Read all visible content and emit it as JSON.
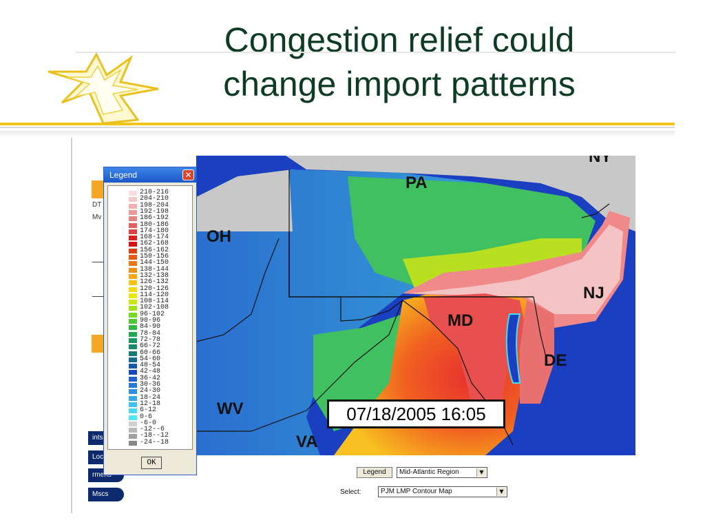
{
  "slide": {
    "title_line1": "Congestion relief could",
    "title_line2": "change import patterns",
    "accent_color": "#f0c419",
    "title_color": "#0d3b24"
  },
  "app": {
    "side_texts": [
      "DT",
      "Mv"
    ],
    "side_pills": [
      "ints",
      "Loc",
      "rmens",
      "Mscs"
    ]
  },
  "legend": {
    "title": "Legend",
    "close_icon": "close-icon",
    "ok_label": "OK",
    "entries": [
      {
        "label": "210-216",
        "color": "#f6dede"
      },
      {
        "label": "204-210",
        "color": "#f2c8c8"
      },
      {
        "label": "198-204",
        "color": "#f0b0b0"
      },
      {
        "label": "192-198",
        "color": "#ec9898"
      },
      {
        "label": "186-192",
        "color": "#e88080"
      },
      {
        "label": "180-186",
        "color": "#e46060"
      },
      {
        "label": "174-180",
        "color": "#e04040"
      },
      {
        "label": "168-174",
        "color": "#dc2020"
      },
      {
        "label": "162-168",
        "color": "#d81010"
      },
      {
        "label": "156-162",
        "color": "#e03c10"
      },
      {
        "label": "150-156",
        "color": "#e85a10"
      },
      {
        "label": "144-150",
        "color": "#f07810"
      },
      {
        "label": "138-144",
        "color": "#f49010"
      },
      {
        "label": "132-138",
        "color": "#f8a810"
      },
      {
        "label": "126-132",
        "color": "#f8c010"
      },
      {
        "label": "120-126",
        "color": "#f4d810"
      },
      {
        "label": "114-120",
        "color": "#e8e810"
      },
      {
        "label": "108-114",
        "color": "#c8e810"
      },
      {
        "label": "102-108",
        "color": "#a0e010"
      },
      {
        "label": "96-102",
        "color": "#78d820"
      },
      {
        "label": "90-96",
        "color": "#50c830"
      },
      {
        "label": "84-90",
        "color": "#30b840"
      },
      {
        "label": "78-84",
        "color": "#20a850"
      },
      {
        "label": "72-78",
        "color": "#189860"
      },
      {
        "label": "66-72",
        "color": "#188868"
      },
      {
        "label": "60-66",
        "color": "#187878"
      },
      {
        "label": "54-60",
        "color": "#186890"
      },
      {
        "label": "48-54",
        "color": "#1858a8"
      },
      {
        "label": "42-48",
        "color": "#1848c0"
      },
      {
        "label": "36-42",
        "color": "#2060d0"
      },
      {
        "label": "30-36",
        "color": "#2878d8"
      },
      {
        "label": "24-30",
        "color": "#3090e0"
      },
      {
        "label": "18-24",
        "color": "#38a8e8"
      },
      {
        "label": "12-18",
        "color": "#40c0f0"
      },
      {
        "label": "6-12",
        "color": "#48d8f0"
      },
      {
        "label": "0-6",
        "color": "#50e8f8"
      },
      {
        "label": "-6-0",
        "color": "#d0d0d0"
      },
      {
        "label": "-12--6",
        "color": "#b8b8b8"
      },
      {
        "label": "-18--12",
        "color": "#a0a0a0"
      },
      {
        "label": "-24--18",
        "color": "#888888"
      }
    ]
  },
  "map": {
    "timestamp": "07/18/2005 16:05",
    "states": {
      "pa": "PA",
      "oh": "OH",
      "nj": "NJ",
      "md": "MD",
      "de": "DE",
      "wv": "WV",
      "va": "VA",
      "ny": "NY"
    }
  },
  "controls": {
    "legend_button": "Legend",
    "region_select": "Mid-Atlantic Region",
    "select_label": "Select:",
    "map_select": "PJM LMP Contour Map"
  }
}
